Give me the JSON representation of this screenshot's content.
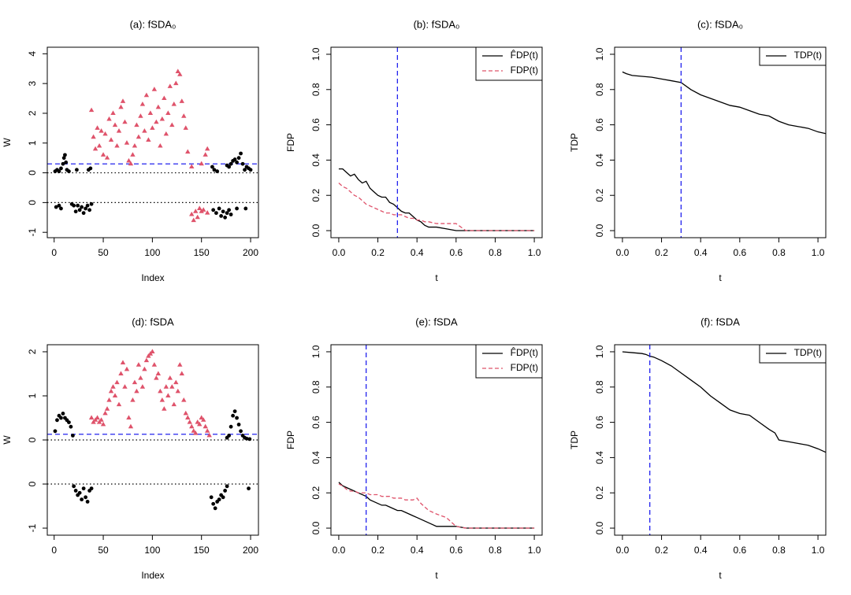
{
  "chart_data": [
    {
      "type": "scatter",
      "title": "(a): fSDA₀",
      "x_label": "Index",
      "y_label": "W",
      "xlim": [
        -7,
        208
      ],
      "xticks": [
        0,
        50,
        100,
        150,
        200
      ],
      "y_segments": [
        {
          "ylim": [
            -1.18,
            0.5
          ],
          "yticks": [
            -1,
            0
          ]
        },
        {
          "ylim": [
            -0.5,
            4.22
          ],
          "yticks": [
            0,
            1,
            2,
            3,
            4
          ]
        }
      ],
      "hline": 0,
      "threshold": 0.3,
      "threshold_color": "#2222ee",
      "series": [
        {
          "color": "#000000",
          "marker": "circle",
          "x": [
            1,
            3,
            5,
            7,
            9,
            10,
            11,
            12,
            13,
            15,
            23,
            35,
            37,
            161,
            163,
            166,
            176,
            178,
            180,
            182,
            184,
            186,
            188,
            190,
            192,
            194,
            196,
            198,
            200,
            2,
            5,
            7,
            18,
            20,
            22,
            24,
            26,
            28,
            30,
            32,
            34,
            36,
            38,
            162,
            165,
            168,
            170,
            172,
            174,
            176,
            178,
            180,
            186,
            195
          ],
          "values": [
            0.05,
            0.1,
            0.05,
            0.15,
            0.3,
            0.5,
            0.6,
            0.35,
            0.1,
            0.05,
            0.1,
            0.1,
            0.15,
            0.2,
            0.1,
            0.05,
            0.25,
            0.2,
            0.3,
            0.4,
            0.45,
            0.35,
            0.5,
            0.65,
            0.3,
            0.1,
            0.2,
            0.15,
            0.1,
            -0.15,
            -0.1,
            -0.2,
            -0.05,
            -0.1,
            -0.3,
            -0.1,
            -0.25,
            -0.15,
            -0.35,
            -0.2,
            -0.1,
            -0.25,
            -0.05,
            -0.25,
            -0.35,
            -0.2,
            -0.45,
            -0.3,
            -0.5,
            -0.35,
            -0.25,
            -0.4,
            -0.2,
            -0.2
          ]
        },
        {
          "color": "#df536b",
          "marker": "triangle",
          "x": [
            38,
            40,
            42,
            44,
            46,
            48,
            50,
            52,
            54,
            56,
            58,
            60,
            62,
            64,
            66,
            68,
            70,
            72,
            74,
            76,
            78,
            80,
            82,
            84,
            86,
            88,
            90,
            92,
            94,
            96,
            98,
            100,
            102,
            104,
            106,
            108,
            110,
            112,
            114,
            116,
            118,
            120,
            122,
            124,
            126,
            128,
            130,
            132,
            134,
            136,
            140,
            150,
            154,
            156,
            140,
            142,
            144,
            146,
            148,
            150,
            152,
            156
          ],
          "values": [
            2.1,
            1.2,
            0.8,
            1.5,
            0.9,
            1.4,
            0.6,
            1.3,
            0.5,
            1.8,
            1.1,
            2.0,
            1.6,
            0.9,
            1.4,
            2.2,
            2.4,
            1.7,
            1.0,
            0.4,
            0.3,
            0.6,
            0.9,
            1.6,
            1.2,
            1.9,
            2.3,
            1.4,
            2.6,
            1.1,
            2.0,
            1.5,
            2.8,
            1.7,
            2.2,
            0.9,
            1.8,
            2.5,
            1.3,
            2.0,
            2.9,
            1.6,
            2.3,
            3.0,
            3.4,
            3.3,
            2.4,
            1.9,
            1.5,
            0.7,
            0.2,
            0.3,
            0.6,
            0.8,
            -0.4,
            -0.6,
            -0.3,
            -0.5,
            -0.2,
            -0.3,
            -0.25,
            -0.35
          ]
        }
      ]
    },
    {
      "type": "line",
      "title": "(b): fSDA₀",
      "x_label": "t",
      "y_label": "FDP",
      "xlim": [
        -0.04,
        1.04
      ],
      "ylim": [
        -0.04,
        1.04
      ],
      "xticks": [
        {
          "value": 0,
          "label": "0.0"
        },
        0.2,
        0.4,
        0.6,
        0.8,
        {
          "value": 1,
          "label": "1.0"
        }
      ],
      "yticks": [
        {
          "value": 0,
          "label": "0.0"
        },
        0.2,
        0.4,
        0.6,
        0.8,
        {
          "value": 1,
          "label": "1.0"
        }
      ],
      "vline": 0.3,
      "vline_color": "#2222ee",
      "legend": "topright",
      "series": [
        {
          "name": "F̂DP(t)",
          "color": "#000000",
          "line_style": "solid",
          "x": [
            0,
            0.02,
            0.04,
            0.06,
            0.08,
            0.1,
            0.12,
            0.14,
            0.16,
            0.18,
            0.2,
            0.22,
            0.24,
            0.26,
            0.28,
            0.3,
            0.32,
            0.34,
            0.36,
            0.38,
            0.4,
            0.42,
            0.44,
            0.46,
            0.5,
            0.55,
            0.6,
            0.65,
            1.0
          ],
          "values": [
            0.35,
            0.35,
            0.33,
            0.31,
            0.32,
            0.29,
            0.27,
            0.28,
            0.24,
            0.22,
            0.2,
            0.19,
            0.19,
            0.16,
            0.15,
            0.13,
            0.11,
            0.1,
            0.1,
            0.08,
            0.06,
            0.05,
            0.03,
            0.02,
            0.02,
            0.01,
            0.0,
            0.0,
            0.0
          ]
        },
        {
          "name": "FDP(t)",
          "color": "#df536b",
          "line_style": "dashed",
          "x": [
            0,
            0.02,
            0.04,
            0.06,
            0.08,
            0.1,
            0.12,
            0.14,
            0.16,
            0.18,
            0.2,
            0.22,
            0.24,
            0.26,
            0.28,
            0.3,
            0.32,
            0.34,
            0.36,
            0.38,
            0.4,
            0.42,
            0.44,
            0.46,
            0.5,
            0.55,
            0.6,
            0.65,
            1.0
          ],
          "values": [
            0.27,
            0.25,
            0.24,
            0.22,
            0.2,
            0.19,
            0.17,
            0.15,
            0.14,
            0.13,
            0.12,
            0.11,
            0.1,
            0.1,
            0.09,
            0.09,
            0.09,
            0.08,
            0.07,
            0.07,
            0.06,
            0.06,
            0.05,
            0.05,
            0.04,
            0.04,
            0.04,
            0.0,
            0.0
          ]
        }
      ]
    },
    {
      "type": "line",
      "title": "(c): fSDA₀",
      "x_label": "t",
      "y_label": "TDP",
      "xlim": [
        -0.04,
        1.04
      ],
      "ylim": [
        -0.04,
        1.04
      ],
      "xticks": [
        {
          "value": 0,
          "label": "0.0"
        },
        0.2,
        0.4,
        0.6,
        0.8,
        {
          "value": 1,
          "label": "1.0"
        }
      ],
      "yticks": [
        {
          "value": 0,
          "label": "0.0"
        },
        0.2,
        0.4,
        0.6,
        0.8,
        {
          "value": 1,
          "label": "1.0"
        }
      ],
      "vline": 0.3,
      "vline_color": "#2222ee",
      "legend": "topright",
      "series": [
        {
          "name": "TDP(t)",
          "color": "#000000",
          "line_style": "solid",
          "x": [
            0,
            0.02,
            0.05,
            0.1,
            0.15,
            0.2,
            0.25,
            0.3,
            0.35,
            0.4,
            0.45,
            0.5,
            0.55,
            0.6,
            0.65,
            0.7,
            0.75,
            0.8,
            0.85,
            0.9,
            0.95,
            1.0,
            1.04
          ],
          "values": [
            0.9,
            0.89,
            0.88,
            0.875,
            0.87,
            0.86,
            0.85,
            0.84,
            0.8,
            0.77,
            0.75,
            0.73,
            0.71,
            0.7,
            0.68,
            0.66,
            0.65,
            0.62,
            0.6,
            0.59,
            0.58,
            0.56,
            0.55
          ]
        }
      ]
    },
    {
      "type": "scatter",
      "title": "(d): fSDA",
      "x_label": "Index",
      "y_label": "W",
      "xlim": [
        -7,
        208
      ],
      "xticks": [
        0,
        50,
        100,
        150,
        200
      ],
      "y_segments": [
        {
          "ylim": [
            -1.16,
            0.5
          ],
          "yticks": [
            -1,
            0
          ]
        },
        {
          "ylim": [
            -0.5,
            2.16
          ],
          "yticks": [
            0,
            1,
            2
          ]
        }
      ],
      "hline": 0,
      "threshold": 0.13,
      "threshold_color": "#2222ee",
      "series": [
        {
          "color": "#000000",
          "marker": "circle",
          "x": [
            1,
            3,
            5,
            7,
            9,
            11,
            13,
            15,
            17,
            19,
            176,
            178,
            180,
            182,
            184,
            186,
            188,
            190,
            192,
            194,
            196,
            199,
            20,
            22,
            24,
            26,
            28,
            30,
            32,
            34,
            36,
            38,
            160,
            162,
            164,
            166,
            168,
            170,
            172,
            174,
            176,
            198
          ],
          "values": [
            0.2,
            0.45,
            0.55,
            0.5,
            0.6,
            0.5,
            0.45,
            0.4,
            0.3,
            0.1,
            0.05,
            0.1,
            0.3,
            0.55,
            0.65,
            0.5,
            0.35,
            0.2,
            0.1,
            0.05,
            0.03,
            0.02,
            -0.05,
            -0.15,
            -0.25,
            -0.2,
            -0.35,
            -0.1,
            -0.3,
            -0.4,
            -0.15,
            -0.1,
            -0.3,
            -0.45,
            -0.55,
            -0.4,
            -0.35,
            -0.25,
            -0.3,
            -0.15,
            -0.05,
            -0.1
          ]
        },
        {
          "color": "#df536b",
          "marker": "triangle",
          "x": [
            38,
            40,
            42,
            44,
            46,
            48,
            50,
            52,
            54,
            56,
            58,
            60,
            62,
            64,
            66,
            68,
            70,
            72,
            74,
            76,
            78,
            80,
            82,
            84,
            86,
            88,
            90,
            92,
            94,
            96,
            98,
            100,
            102,
            104,
            106,
            108,
            110,
            112,
            114,
            116,
            118,
            120,
            122,
            124,
            126,
            128,
            130,
            132,
            134,
            136,
            138,
            140,
            142,
            144,
            146,
            148,
            150,
            152,
            154,
            156,
            158
          ],
          "values": [
            0.5,
            0.4,
            0.45,
            0.5,
            0.4,
            0.45,
            0.35,
            0.6,
            0.7,
            0.9,
            1.1,
            1.2,
            1.0,
            1.3,
            0.8,
            1.5,
            1.75,
            1.2,
            1.6,
            0.5,
            0.3,
            0.9,
            1.3,
            1.1,
            1.7,
            1.4,
            1.2,
            1.6,
            1.8,
            1.9,
            1.95,
            2.0,
            1.7,
            1.4,
            1.5,
            1.1,
            0.9,
            0.7,
            1.2,
            1.0,
            1.4,
            1.2,
            0.8,
            1.3,
            1.1,
            1.7,
            1.5,
            0.9,
            0.6,
            0.5,
            0.4,
            0.3,
            0.2,
            0.15,
            0.4,
            0.35,
            0.5,
            0.45,
            0.3,
            0.2,
            0.1
          ]
        }
      ]
    },
    {
      "type": "line",
      "title": "(e): fSDA",
      "x_label": "t",
      "y_label": "FDP",
      "xlim": [
        -0.04,
        1.04
      ],
      "ylim": [
        -0.04,
        1.04
      ],
      "xticks": [
        {
          "value": 0,
          "label": "0.0"
        },
        0.2,
        0.4,
        0.6,
        0.8,
        {
          "value": 1,
          "label": "1.0"
        }
      ],
      "yticks": [
        {
          "value": 0,
          "label": "0.0"
        },
        0.2,
        0.4,
        0.6,
        0.8,
        {
          "value": 1,
          "label": "1.0"
        }
      ],
      "vline": 0.14,
      "vline_color": "#2222ee",
      "legend": "topright",
      "series": [
        {
          "name": "F̂DP(t)",
          "color": "#000000",
          "line_style": "solid",
          "x": [
            0,
            0.02,
            0.04,
            0.06,
            0.08,
            0.1,
            0.12,
            0.14,
            0.16,
            0.18,
            0.2,
            0.22,
            0.24,
            0.26,
            0.28,
            0.3,
            0.32,
            0.34,
            0.36,
            0.38,
            0.4,
            0.42,
            0.44,
            0.46,
            0.5,
            0.55,
            0.6,
            0.65,
            1.0
          ],
          "values": [
            0.26,
            0.24,
            0.23,
            0.22,
            0.21,
            0.2,
            0.19,
            0.18,
            0.16,
            0.15,
            0.14,
            0.13,
            0.13,
            0.12,
            0.11,
            0.1,
            0.1,
            0.09,
            0.08,
            0.07,
            0.06,
            0.05,
            0.04,
            0.03,
            0.01,
            0.01,
            0.01,
            0.0,
            0.0
          ]
        },
        {
          "name": "FDP(t)",
          "color": "#df536b",
          "line_style": "dashed",
          "x": [
            0,
            0.02,
            0.04,
            0.06,
            0.08,
            0.1,
            0.12,
            0.14,
            0.16,
            0.18,
            0.2,
            0.22,
            0.24,
            0.26,
            0.28,
            0.3,
            0.32,
            0.34,
            0.36,
            0.38,
            0.4,
            0.42,
            0.44,
            0.46,
            0.5,
            0.55,
            0.6,
            0.65,
            1.0
          ],
          "values": [
            0.25,
            0.24,
            0.22,
            0.21,
            0.21,
            0.2,
            0.2,
            0.2,
            0.19,
            0.19,
            0.19,
            0.18,
            0.18,
            0.18,
            0.17,
            0.17,
            0.17,
            0.16,
            0.16,
            0.16,
            0.17,
            0.14,
            0.12,
            0.1,
            0.08,
            0.06,
            0.01,
            0.0,
            0.0
          ]
        }
      ]
    },
    {
      "type": "line",
      "title": "(f): fSDA",
      "x_label": "t",
      "y_label": "TDP",
      "xlim": [
        -0.04,
        1.04
      ],
      "ylim": [
        -0.04,
        1.04
      ],
      "xticks": [
        {
          "value": 0,
          "label": "0.0"
        },
        0.2,
        0.4,
        0.6,
        0.8,
        {
          "value": 1,
          "label": "1.0"
        }
      ],
      "yticks": [
        {
          "value": 0,
          "label": "0.0"
        },
        0.2,
        0.4,
        0.6,
        0.8,
        {
          "value": 1,
          "label": "1.0"
        }
      ],
      "vline": 0.14,
      "vline_color": "#2222ee",
      "legend": "topright",
      "series": [
        {
          "name": "TDP(t)",
          "color": "#000000",
          "line_style": "solid",
          "x": [
            0,
            0.05,
            0.1,
            0.12,
            0.14,
            0.16,
            0.2,
            0.25,
            0.3,
            0.35,
            0.4,
            0.45,
            0.5,
            0.55,
            0.6,
            0.65,
            0.7,
            0.75,
            0.78,
            0.8,
            0.85,
            0.9,
            0.95,
            1.0,
            1.04
          ],
          "values": [
            1.0,
            0.995,
            0.99,
            0.985,
            0.975,
            0.97,
            0.95,
            0.92,
            0.88,
            0.84,
            0.8,
            0.75,
            0.71,
            0.67,
            0.65,
            0.64,
            0.6,
            0.56,
            0.54,
            0.5,
            0.49,
            0.48,
            0.47,
            0.45,
            0.43
          ]
        }
      ]
    }
  ]
}
